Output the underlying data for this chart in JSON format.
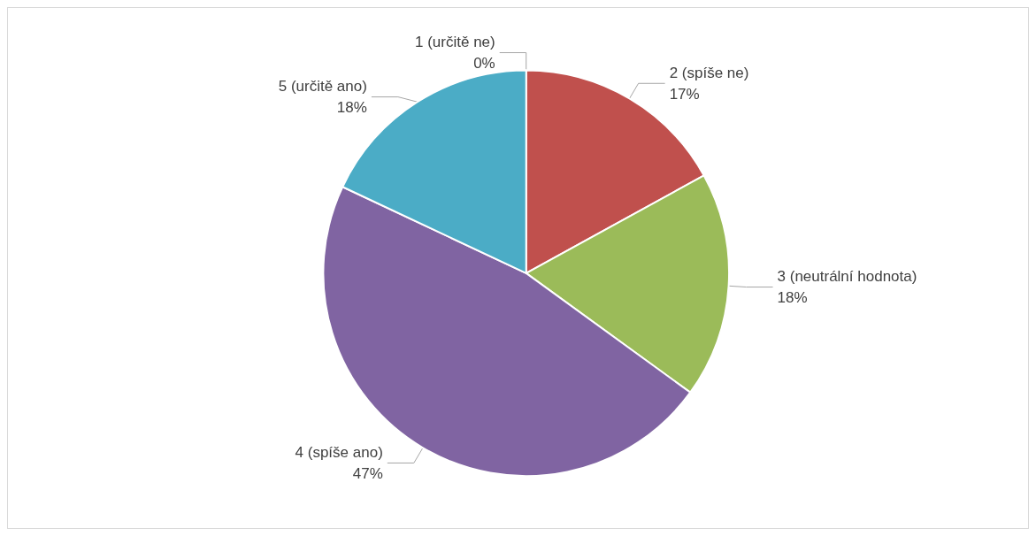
{
  "chart_data": {
    "type": "pie",
    "categories": [
      "1 (určitě ne)",
      "2 (spíše ne)",
      "3 (neutrální hodnota)",
      "4 (spíše ano)",
      "5 (určitě ano)"
    ],
    "values": [
      0,
      17,
      18,
      47,
      18
    ],
    "value_labels": [
      "0%",
      "17%",
      "18%",
      "47%",
      "18%"
    ],
    "colors": [
      "#4f81bd",
      "#c0504d",
      "#9bbb59",
      "#8064a2",
      "#4bacc6"
    ],
    "legend": false
  }
}
